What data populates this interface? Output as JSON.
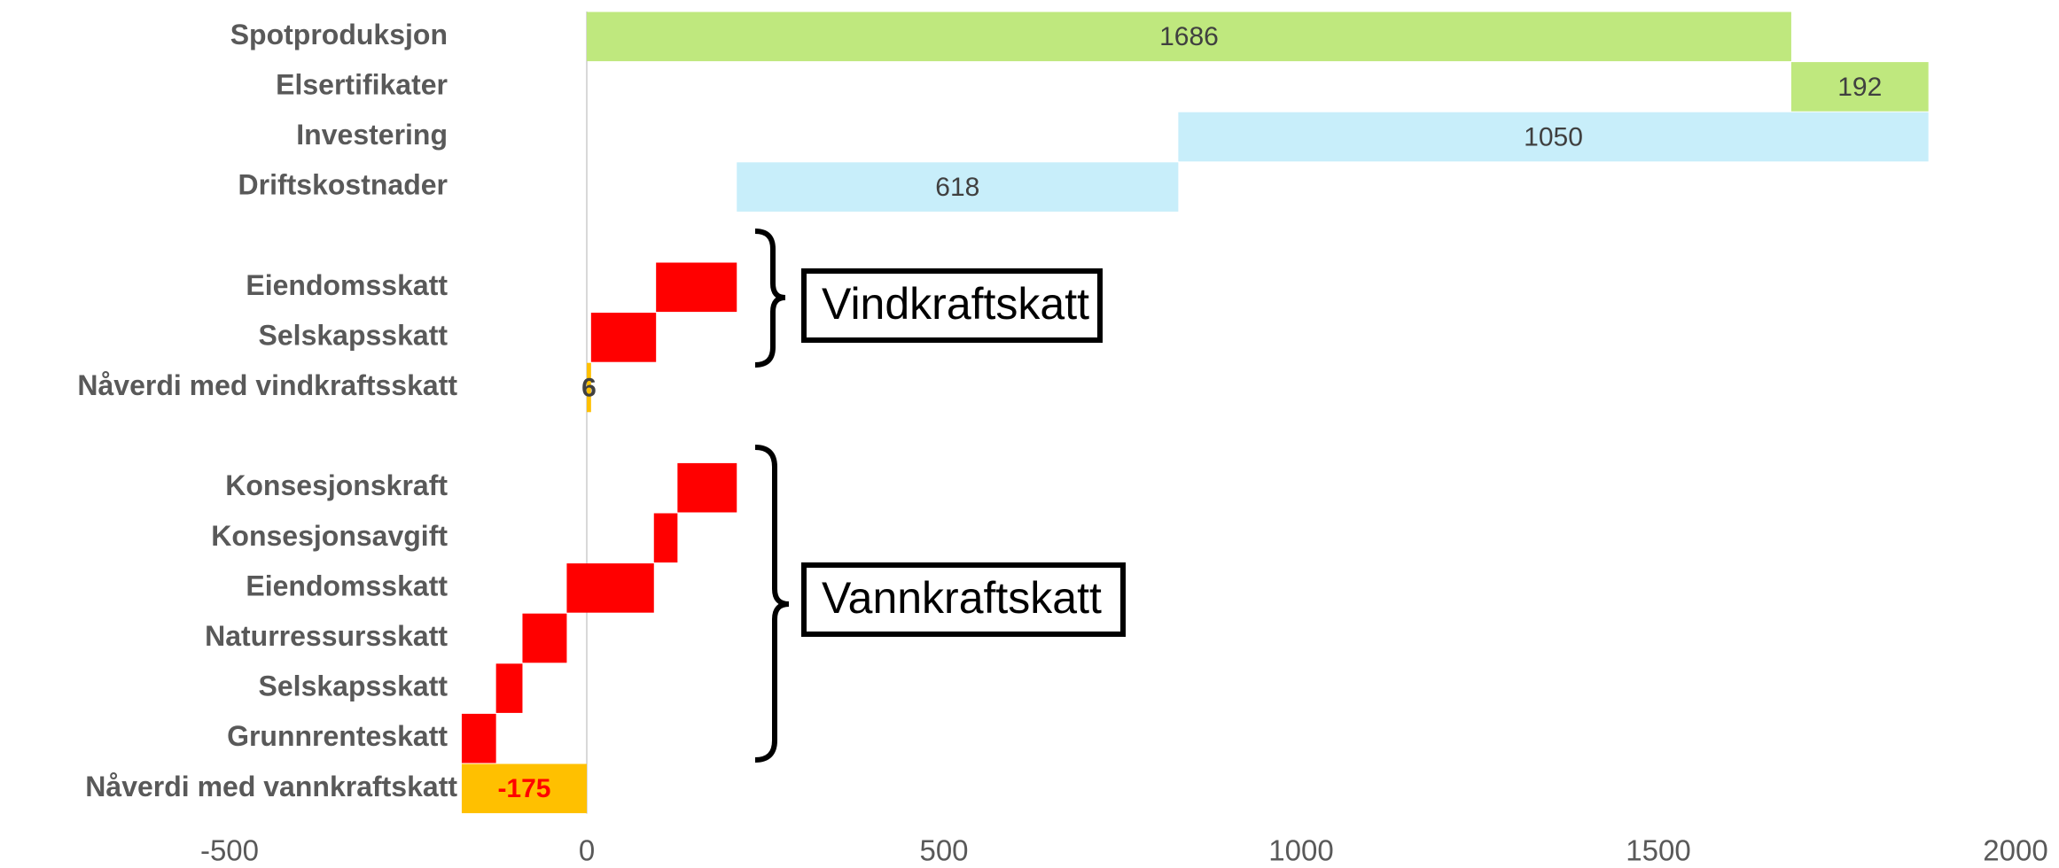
{
  "chart_data": {
    "type": "waterfall",
    "orientation": "horizontal",
    "categories": [
      "Spotproduksjon",
      "Elsertifikater",
      "Investering",
      "Driftskostnader",
      null,
      "Eiendomsskatt",
      "Selskapsskatt",
      "Nåverdi med vindkraftsskatt",
      null,
      "Konsesjonskraft",
      "Konsesjonsavgift",
      "Eiendomsskatt",
      "Naturressursskatt",
      "Selskapsskatt",
      "Grunnrenteskatt",
      "Nåverdi med vannkraftskatt"
    ],
    "measure": [
      "increase",
      "increase",
      "decrease",
      "decrease",
      null,
      "decrease",
      "decrease",
      "total",
      null,
      "decrease",
      "decrease",
      "decrease",
      "decrease",
      "decrease",
      "decrease",
      "total"
    ],
    "values": [
      1686,
      192,
      1050,
      618,
      null,
      113,
      91,
      6,
      null,
      83,
      33,
      122,
      62,
      37,
      48,
      -175
    ],
    "value_labels": [
      "1686",
      "192",
      "1050",
      "618",
      null,
      null,
      null,
      "6",
      null,
      null,
      null,
      null,
      null,
      null,
      null,
      "-175"
    ],
    "colors": [
      "#bfe87e",
      "#bfe87e",
      "#c8eefa",
      "#c8eefa",
      null,
      "#ff0000",
      "#ff0000",
      "#ffc000",
      null,
      "#ff0000",
      "#ff0000",
      "#ff0000",
      "#ff0000",
      "#ff0000",
      "#ff0000",
      "#ffc000"
    ],
    "xlim": [
      -500,
      2000
    ],
    "xticks": [
      -500,
      0,
      500,
      1000,
      1500,
      2000
    ],
    "annotations": [
      "Vindkraftskatt",
      "Vannkraftskatt"
    ]
  }
}
